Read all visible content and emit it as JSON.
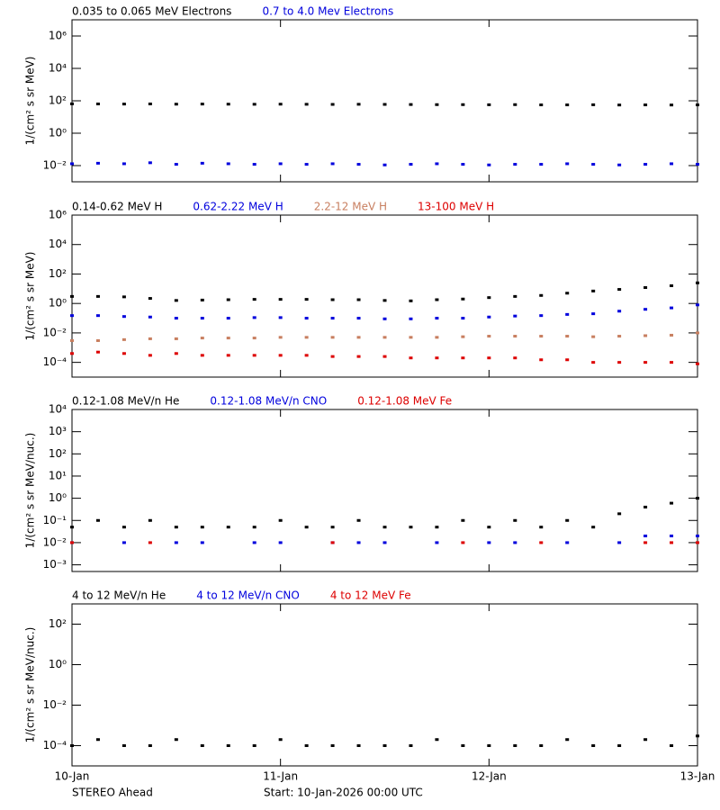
{
  "chart_data": [
    {
      "type": "scatter",
      "y_label": "1/(cm² s sr MeV)",
      "log_y": true,
      "ylim": [
        0.001,
        10000000
      ],
      "yticks": [
        {
          "value": 0.01,
          "label": "10⁻²"
        },
        {
          "value": 1,
          "label": "10⁰"
        },
        {
          "value": 100,
          "label": "10²"
        },
        {
          "value": 10000,
          "label": "10⁴"
        },
        {
          "value": 1000000,
          "label": "10⁶"
        }
      ],
      "xlim": [
        "2026-01-10T00:00",
        "2026-01-13T00:00"
      ],
      "x": [
        "2026-01-10T00:00",
        "2026-01-10T03:00",
        "2026-01-10T06:00",
        "2026-01-10T09:00",
        "2026-01-10T12:00",
        "2026-01-10T15:00",
        "2026-01-10T18:00",
        "2026-01-10T21:00",
        "2026-01-11T00:00",
        "2026-01-11T03:00",
        "2026-01-11T06:00",
        "2026-01-11T09:00",
        "2026-01-11T12:00",
        "2026-01-11T15:00",
        "2026-01-11T18:00",
        "2026-01-11T21:00",
        "2026-01-12T00:00",
        "2026-01-12T03:00",
        "2026-01-12T06:00",
        "2026-01-12T09:00",
        "2026-01-12T12:00",
        "2026-01-12T15:00",
        "2026-01-12T18:00",
        "2026-01-12T21:00",
        "2026-01-13T00:00"
      ],
      "series": [
        {
          "name": "0.035 to 0.065 MeV Electrons",
          "color": "#000000",
          "values": [
            65,
            64,
            63,
            64,
            62,
            63,
            62,
            61,
            62,
            61,
            60,
            61,
            60,
            59,
            58,
            58,
            57,
            58,
            56,
            56,
            57,
            55,
            56,
            55,
            56
          ]
        },
        {
          "name": "0.7 to 4.0 Mev Electrons",
          "color": "#0000dd",
          "values": [
            0.013,
            0.014,
            0.013,
            0.015,
            0.012,
            0.014,
            0.013,
            0.012,
            0.013,
            0.012,
            0.013,
            0.012,
            0.011,
            0.012,
            0.013,
            0.012,
            0.011,
            0.012,
            0.012,
            0.013,
            0.012,
            0.011,
            0.012,
            0.013,
            0.012
          ]
        }
      ]
    },
    {
      "type": "scatter",
      "y_label": "1/(cm² s sr MeV)",
      "log_y": true,
      "ylim": [
        1e-05,
        1000000
      ],
      "yticks": [
        {
          "value": 0.0001,
          "label": "10⁻⁴"
        },
        {
          "value": 0.01,
          "label": "10⁻²"
        },
        {
          "value": 1,
          "label": "10⁰"
        },
        {
          "value": 100,
          "label": "10²"
        },
        {
          "value": 10000,
          "label": "10⁴"
        },
        {
          "value": 1000000,
          "label": "10⁶"
        }
      ],
      "xlim": [
        "2026-01-10T00:00",
        "2026-01-13T00:00"
      ],
      "x": [
        "2026-01-10T00:00",
        "2026-01-10T03:00",
        "2026-01-10T06:00",
        "2026-01-10T09:00",
        "2026-01-10T12:00",
        "2026-01-10T15:00",
        "2026-01-10T18:00",
        "2026-01-10T21:00",
        "2026-01-11T00:00",
        "2026-01-11T03:00",
        "2026-01-11T06:00",
        "2026-01-11T09:00",
        "2026-01-11T12:00",
        "2026-01-11T15:00",
        "2026-01-11T18:00",
        "2026-01-11T21:00",
        "2026-01-12T00:00",
        "2026-01-12T03:00",
        "2026-01-12T06:00",
        "2026-01-12T09:00",
        "2026-01-12T12:00",
        "2026-01-12T15:00",
        "2026-01-12T18:00",
        "2026-01-12T21:00",
        "2026-01-13T00:00"
      ],
      "series": [
        {
          "name": "0.14-0.62 MeV H",
          "color": "#000000",
          "values": [
            3,
            3,
            2.8,
            2.2,
            1.6,
            1.7,
            1.8,
            1.9,
            1.9,
            1.9,
            1.8,
            1.8,
            1.6,
            1.5,
            1.8,
            2,
            2.5,
            3,
            3.5,
            5,
            7,
            9,
            12,
            16,
            25
          ]
        },
        {
          "name": "0.62-2.22 MeV H",
          "color": "#0000dd",
          "values": [
            0.15,
            0.15,
            0.13,
            0.12,
            0.1,
            0.1,
            0.1,
            0.11,
            0.11,
            0.1,
            0.1,
            0.1,
            0.09,
            0.09,
            0.1,
            0.1,
            0.12,
            0.14,
            0.15,
            0.18,
            0.2,
            0.3,
            0.4,
            0.5,
            0.8
          ]
        },
        {
          "name": "2.2-12 MeV H",
          "color": "#c87f60",
          "values": [
            0.003,
            0.003,
            0.0035,
            0.004,
            0.004,
            0.0045,
            0.0045,
            0.0045,
            0.005,
            0.005,
            0.005,
            0.005,
            0.005,
            0.005,
            0.005,
            0.0055,
            0.006,
            0.006,
            0.006,
            0.006,
            0.0055,
            0.006,
            0.0065,
            0.007,
            0.01
          ]
        },
        {
          "name": "13-100 MeV H",
          "color": "#dd0000",
          "values": [
            0.0004,
            0.0005,
            0.0004,
            0.0003,
            0.0004,
            0.0003,
            0.0003,
            0.0003,
            0.0003,
            0.0003,
            0.00025,
            0.00025,
            0.00025,
            0.0002,
            0.0002,
            0.0002,
            0.0002,
            0.0002,
            0.00015,
            0.00015,
            0.0001,
            0.0001,
            0.0001,
            0.0001,
            8e-05
          ]
        }
      ]
    },
    {
      "type": "scatter",
      "y_label": "1/(cm² s sr MeV/nuc.)",
      "log_y": true,
      "ylim": [
        0.0005,
        10000
      ],
      "yticks": [
        {
          "value": 0.001,
          "label": "10⁻³"
        },
        {
          "value": 0.01,
          "label": "10⁻²"
        },
        {
          "value": 0.1,
          "label": "10⁻¹"
        },
        {
          "value": 1,
          "label": "10⁰"
        },
        {
          "value": 10,
          "label": "10¹"
        },
        {
          "value": 100,
          "label": "10²"
        },
        {
          "value": 1000,
          "label": "10³"
        },
        {
          "value": 10000,
          "label": "10⁴"
        }
      ],
      "xlim": [
        "2026-01-10T00:00",
        "2026-01-13T00:00"
      ],
      "x": [
        "2026-01-10T00:00",
        "2026-01-10T03:00",
        "2026-01-10T06:00",
        "2026-01-10T09:00",
        "2026-01-10T12:00",
        "2026-01-10T15:00",
        "2026-01-10T18:00",
        "2026-01-10T21:00",
        "2026-01-11T00:00",
        "2026-01-11T03:00",
        "2026-01-11T06:00",
        "2026-01-11T09:00",
        "2026-01-11T12:00",
        "2026-01-11T15:00",
        "2026-01-11T18:00",
        "2026-01-11T21:00",
        "2026-01-12T00:00",
        "2026-01-12T03:00",
        "2026-01-12T06:00",
        "2026-01-12T09:00",
        "2026-01-12T12:00",
        "2026-01-12T15:00",
        "2026-01-12T18:00",
        "2026-01-12T21:00",
        "2026-01-13T00:00"
      ],
      "series": [
        {
          "name": "0.12-1.08 MeV/n He",
          "color": "#000000",
          "values": [
            0.05,
            0.1,
            0.05,
            0.1,
            0.05,
            0.05,
            0.05,
            0.05,
            0.1,
            0.05,
            0.05,
            0.1,
            0.05,
            0.05,
            0.05,
            0.1,
            0.05,
            0.1,
            0.05,
            0.1,
            0.05,
            0.2,
            0.4,
            0.6,
            1
          ]
        },
        {
          "name": "0.12-1.08 MeV/n CNO",
          "color": "#0000dd",
          "values": [
            0.01,
            null,
            0.01,
            null,
            0.01,
            0.01,
            null,
            0.01,
            0.01,
            null,
            0.01,
            0.01,
            0.01,
            null,
            0.01,
            null,
            0.01,
            0.01,
            null,
            0.01,
            null,
            0.01,
            0.02,
            0.02,
            0.02
          ]
        },
        {
          "name": "0.12-1.08 MeV Fe",
          "color": "#dd0000",
          "values": [
            0.01,
            null,
            null,
            0.01,
            null,
            null,
            null,
            null,
            null,
            null,
            0.01,
            null,
            null,
            null,
            null,
            0.01,
            null,
            null,
            0.01,
            null,
            null,
            null,
            0.01,
            0.01,
            0.01
          ]
        }
      ]
    },
    {
      "type": "scatter",
      "y_label": "1/(cm² s sr MeV/nuc.)",
      "log_y": true,
      "ylim": [
        1e-05,
        1000
      ],
      "yticks": [
        {
          "value": 0.0001,
          "label": "10⁻⁴"
        },
        {
          "value": 0.01,
          "label": "10⁻²"
        },
        {
          "value": 1,
          "label": "10⁰"
        },
        {
          "value": 100,
          "label": "10²"
        }
      ],
      "xlim": [
        "2026-01-10T00:00",
        "2026-01-13T00:00"
      ],
      "xticks": [
        {
          "value": "2026-01-10T00:00",
          "label": "10-Jan"
        },
        {
          "value": "2026-01-11T00:00",
          "label": "11-Jan"
        },
        {
          "value": "2026-01-12T00:00",
          "label": "12-Jan"
        },
        {
          "value": "2026-01-13T00:00",
          "label": "13-Jan"
        }
      ],
      "x": [
        "2026-01-10T00:00",
        "2026-01-10T03:00",
        "2026-01-10T06:00",
        "2026-01-10T09:00",
        "2026-01-10T12:00",
        "2026-01-10T15:00",
        "2026-01-10T18:00",
        "2026-01-10T21:00",
        "2026-01-11T00:00",
        "2026-01-11T03:00",
        "2026-01-11T06:00",
        "2026-01-11T09:00",
        "2026-01-11T12:00",
        "2026-01-11T15:00",
        "2026-01-11T18:00",
        "2026-01-11T21:00",
        "2026-01-12T00:00",
        "2026-01-12T03:00",
        "2026-01-12T06:00",
        "2026-01-12T09:00",
        "2026-01-12T12:00",
        "2026-01-12T15:00",
        "2026-01-12T18:00",
        "2026-01-12T21:00",
        "2026-01-13T00:00"
      ],
      "series": [
        {
          "name": "4 to 12 MeV/n He",
          "color": "#000000",
          "values": [
            0.0001,
            0.0002,
            0.0001,
            0.0001,
            0.0002,
            0.0001,
            0.0001,
            0.0001,
            0.0002,
            0.0001,
            0.0001,
            0.0001,
            0.0001,
            0.0001,
            0.0002,
            0.0001,
            0.0001,
            0.0001,
            0.0001,
            0.0002,
            0.0001,
            0.0001,
            0.0002,
            0.0001,
            0.0003
          ]
        },
        {
          "name": "4 to 12 MeV/n CNO",
          "color": "#0000dd",
          "values": [
            null,
            null,
            null,
            null,
            null,
            null,
            null,
            null,
            null,
            null,
            null,
            null,
            null,
            null,
            null,
            null,
            null,
            null,
            null,
            null,
            null,
            null,
            null,
            null,
            null
          ]
        },
        {
          "name": "4 to 12 MeV Fe",
          "color": "#dd0000",
          "values": [
            null,
            null,
            null,
            null,
            null,
            null,
            null,
            null,
            null,
            null,
            null,
            null,
            null,
            null,
            null,
            null,
            null,
            null,
            null,
            null,
            null,
            null,
            null,
            null,
            null
          ]
        }
      ],
      "annotations": [
        "STEREO Ahead",
        "Start: 10-Jan-2026 00:00 UTC"
      ]
    }
  ]
}
